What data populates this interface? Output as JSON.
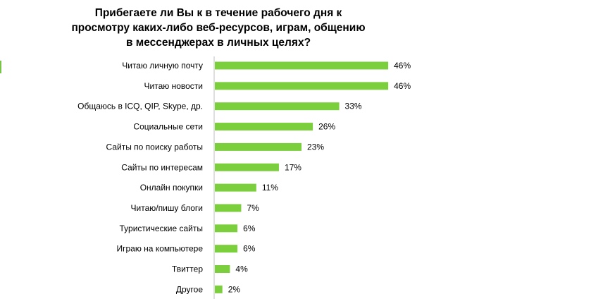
{
  "colors": {
    "bar": "#7ccf3c",
    "axis": "#bfbfbf",
    "edge": "#79c34a"
  },
  "chart_data": {
    "type": "bar",
    "orientation": "horizontal",
    "title": "Прибегаете ли Вы к в течение рабочего дня к просмотру каких-либо веб-ресурсов, играм, общению в мессенджерах в личных целях?",
    "categories": [
      "Читаю  личную почту",
      "Читаю  новости",
      "Общаюсь в ICQ, QIP, Skype, др.",
      "Социальные  сети",
      "Сайты  по поиску работы",
      "Сайты  по интересам",
      "Онлайн  покупки",
      "Читаю/пишу блоги",
      "Туристические  сайты",
      "Играю на компьютере",
      "Твиттер",
      "Другое"
    ],
    "values": [
      46,
      46,
      33,
      26,
      23,
      17,
      11,
      7,
      6,
      6,
      4,
      2
    ],
    "value_labels": [
      "46%",
      "46%",
      "33%",
      "26%",
      "23%",
      "17%",
      "11%",
      "7%",
      "6%",
      "6%",
      "4%",
      "2%"
    ],
    "xlim": [
      0,
      50
    ],
    "grid": false,
    "legend": "none"
  }
}
